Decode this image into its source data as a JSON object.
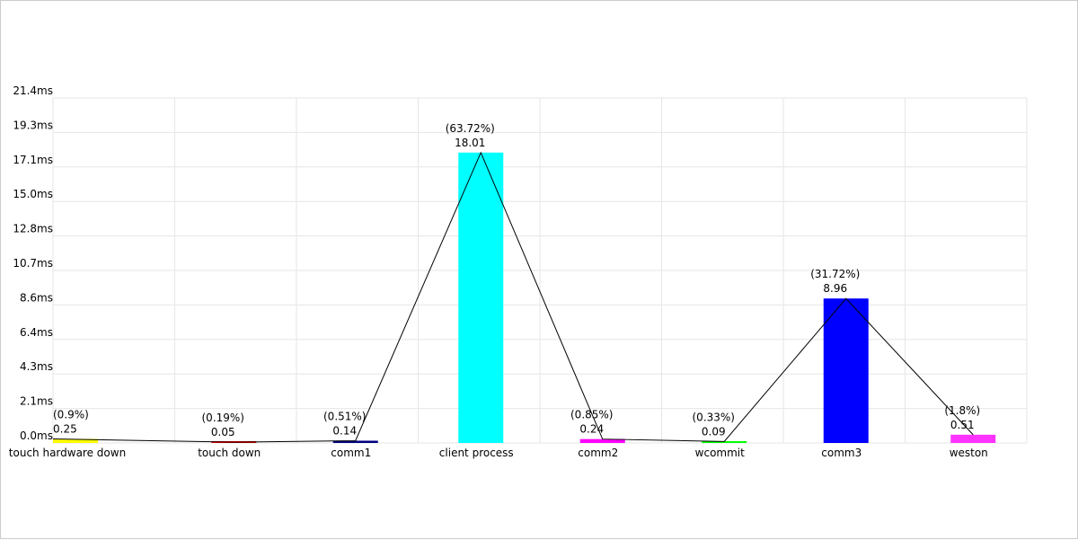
{
  "chart_data": {
    "type": "bar",
    "title": "",
    "xlabel": "",
    "ylabel": "",
    "categories": [
      "touch hardware down",
      "touch down",
      "comm1",
      "client process",
      "comm2",
      "wcommit",
      "comm3",
      "weston"
    ],
    "values": [
      0.25,
      0.05,
      0.14,
      18.01,
      0.24,
      0.09,
      8.96,
      0.51
    ],
    "value_labels": [
      "0.25",
      "0.05",
      "0.14",
      "18.01",
      "0.24",
      "0.09",
      "8.96",
      "0.51"
    ],
    "percent_labels": [
      "(0.9%)",
      "(0.19%)",
      "(0.51%)",
      "(63.72%)",
      "(0.85%)",
      "(0.33%)",
      "(31.72%)",
      "(1.8%)"
    ],
    "bar_colors": [
      "#ffff00",
      "#ff0000",
      "#000080",
      "#00ffff",
      "#ff00ff",
      "#00ff00",
      "#0000ff",
      "#ff33ff"
    ],
    "ylim": [
      0,
      21.4
    ],
    "y_ticks": [
      "0.0ms",
      "2.1ms",
      "4.3ms",
      "6.4ms",
      "8.6ms",
      "10.7ms",
      "12.8ms",
      "15.0ms",
      "17.1ms",
      "19.3ms",
      "21.4ms"
    ],
    "grid": true,
    "overlay_line": true,
    "line_color": "#000000",
    "grid_color": "#e6e6e6"
  }
}
